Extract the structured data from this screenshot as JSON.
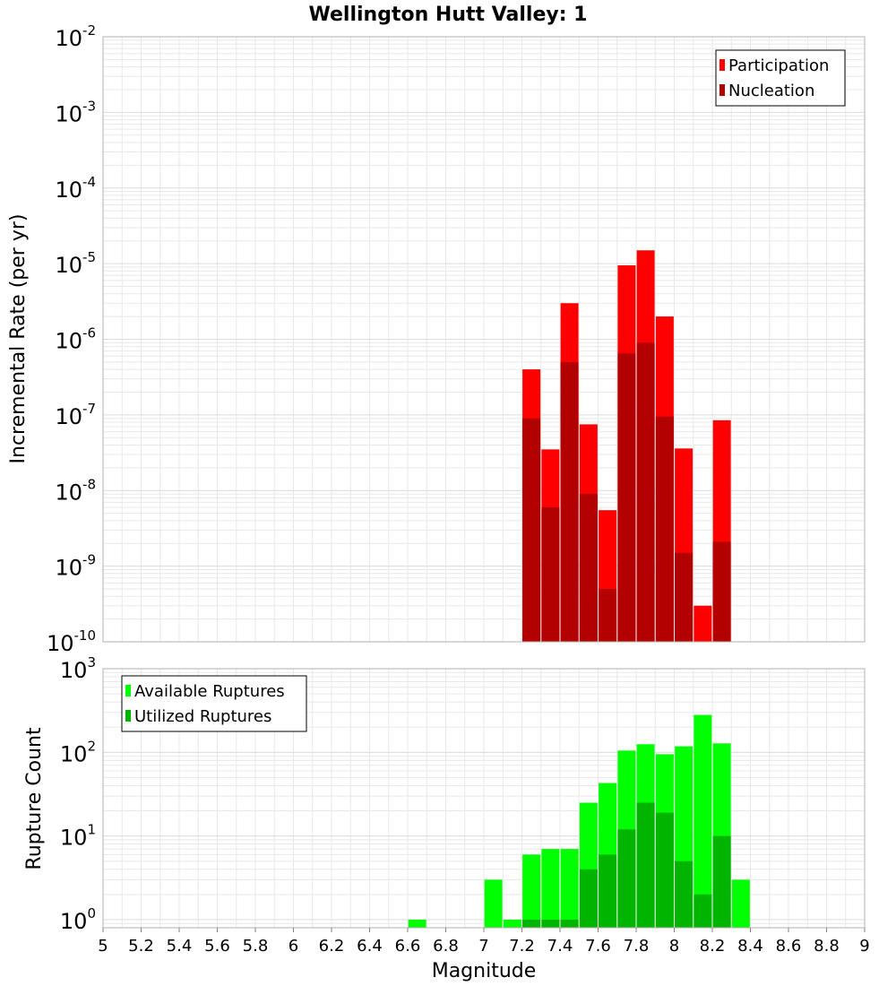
{
  "title": "Wellington Hutt Valley: 1",
  "colors": {
    "participation": "#ff0000",
    "nucleation": "#b30000",
    "available": "#00ff00",
    "utilized": "#00b400",
    "grid": "#e8e8e8",
    "frame": "#b0b0b0"
  },
  "chart_data": [
    {
      "type": "bar",
      "id": "rate-panel",
      "ylabel": "Incremental Rate (per yr)",
      "xlabel": "",
      "xlim": [
        5,
        9
      ],
      "ylim": [
        1e-10,
        0.01
      ],
      "yscale": "log",
      "y_ticks": [
        {
          "base": "10",
          "exp": "-2"
        },
        {
          "base": "10",
          "exp": "-3"
        },
        {
          "base": "10",
          "exp": "-4"
        },
        {
          "base": "10",
          "exp": "-5"
        },
        {
          "base": "10",
          "exp": "-6"
        },
        {
          "base": "10",
          "exp": "-7"
        },
        {
          "base": "10",
          "exp": "-8"
        },
        {
          "base": "10",
          "exp": "-9"
        },
        {
          "base": "10",
          "exp": "-10"
        }
      ],
      "grid": true,
      "legend_position": "top-right",
      "x": [
        7.25,
        7.35,
        7.45,
        7.55,
        7.65,
        7.75,
        7.85,
        7.95,
        8.05,
        8.15,
        8.25
      ],
      "series": [
        {
          "name": "Participation",
          "color_key": "participation",
          "values": [
            4e-07,
            3.5e-08,
            3e-06,
            7.5e-08,
            5.5e-09,
            9.5e-06,
            1.5e-05,
            2e-06,
            3.6e-08,
            3e-10,
            8.5e-08
          ]
        },
        {
          "name": "Nucleation",
          "color_key": "nucleation",
          "values": [
            9e-08,
            6e-09,
            5e-07,
            9e-09,
            5e-10,
            6.5e-07,
            9e-07,
            9.5e-08,
            1.5e-09,
            null,
            2.1e-09
          ]
        }
      ]
    },
    {
      "type": "bar",
      "id": "count-panel",
      "ylabel": "Rupture Count",
      "xlabel": "Magnitude",
      "xlim": [
        5,
        9
      ],
      "ylim": [
        0.8,
        1000
      ],
      "yscale": "log",
      "x_ticks": [
        "5",
        "5.2",
        "5.4",
        "5.6",
        "5.8",
        "6",
        "6.2",
        "6.4",
        "6.6",
        "6.8",
        "7",
        "7.2",
        "7.4",
        "7.6",
        "7.8",
        "8",
        "8.2",
        "8.4",
        "8.6",
        "8.8",
        "9"
      ],
      "y_ticks": [
        {
          "base": "10",
          "exp": "3"
        },
        {
          "base": "10",
          "exp": "2"
        },
        {
          "base": "10",
          "exp": "1"
        },
        {
          "base": "10",
          "exp": "0"
        }
      ],
      "grid": true,
      "legend_position": "top-left",
      "x": [
        6.65,
        7.05,
        7.15,
        7.25,
        7.35,
        7.45,
        7.55,
        7.65,
        7.75,
        7.85,
        7.95,
        8.05,
        8.15,
        8.25,
        8.35
      ],
      "series": [
        {
          "name": "Available Ruptures",
          "color_key": "available",
          "values": [
            1,
            3,
            1,
            6,
            7,
            7,
            25,
            43,
            105,
            125,
            95,
            118,
            280,
            128,
            3
          ]
        },
        {
          "name": "Utilized Ruptures",
          "color_key": "utilized",
          "values": [
            null,
            null,
            null,
            1,
            1,
            1,
            4,
            6,
            12,
            25,
            19,
            5,
            2,
            10,
            null
          ]
        }
      ]
    }
  ]
}
